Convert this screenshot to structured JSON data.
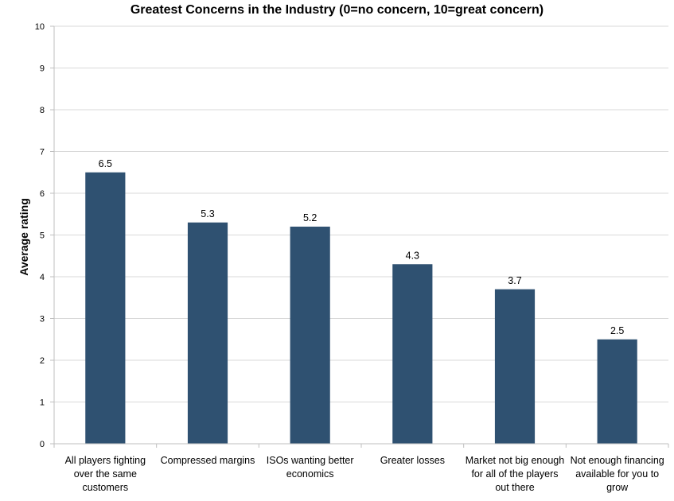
{
  "chart_data": {
    "type": "bar",
    "title": "Greatest Concerns in the Industry (0=no concern, 10=great concern)",
    "xlabel": "",
    "ylabel": "Average rating",
    "ylim": [
      0,
      10
    ],
    "yticks": [
      0,
      1,
      2,
      3,
      4,
      5,
      6,
      7,
      8,
      9,
      10
    ],
    "grid": true,
    "categories": [
      "All players fighting over the same customers",
      "Compressed margins",
      "ISOs wanting better economics",
      "Greater losses",
      "Market not big enough for all of the players out there",
      "Not enough financing available for you to grow"
    ],
    "values": [
      6.5,
      5.3,
      5.2,
      4.3,
      3.7,
      2.5
    ],
    "data_labels": [
      "6.5",
      "5.3",
      "5.2",
      "4.3",
      "3.7",
      "2.5"
    ],
    "bar_color": "#2f5171",
    "grid_color": "#d9d9d9"
  }
}
